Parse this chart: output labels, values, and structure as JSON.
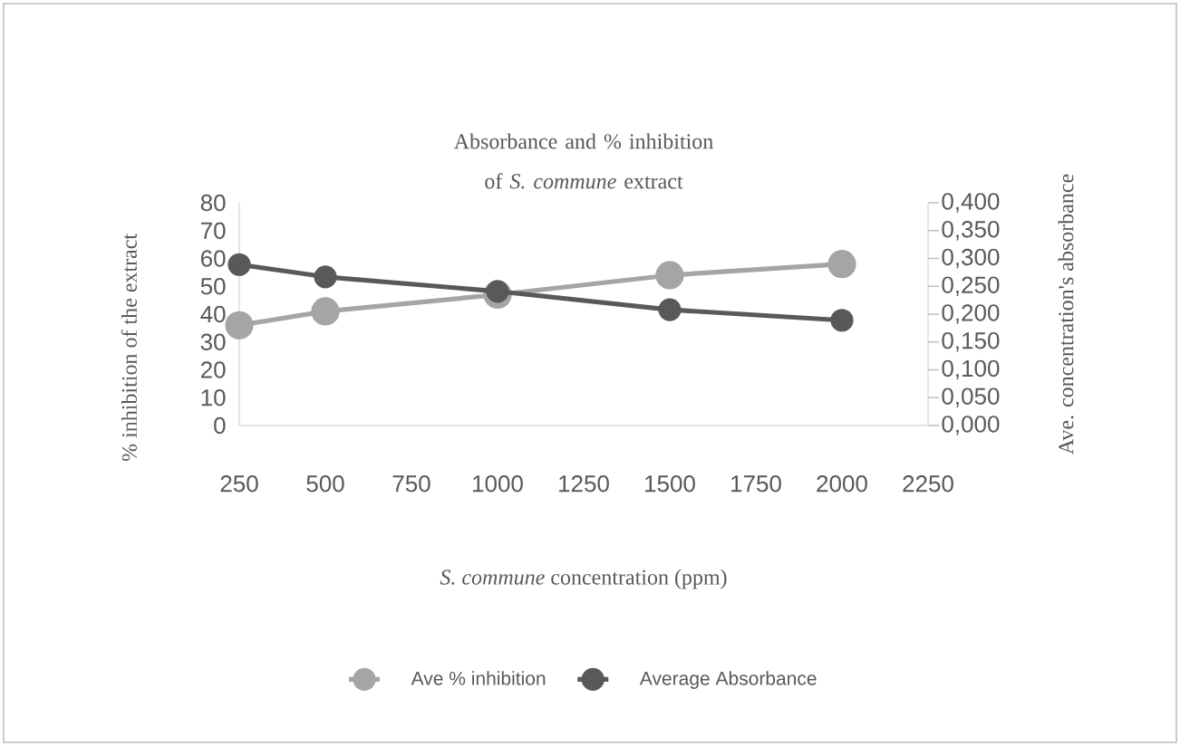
{
  "chart_data": {
    "type": "line",
    "title": "Absorbance and % inhibition of *S. commune* extract",
    "xlabel": "*S. commune* concentration (ppm)",
    "ylabel": "% inhibition of the extract",
    "y2label": "Ave. concentration's absorbance",
    "x": [
      250,
      500,
      1000,
      1500,
      2000
    ],
    "xlim": [
      250,
      2250
    ],
    "xticks": [
      250,
      500,
      750,
      1000,
      1250,
      1500,
      1750,
      2000,
      2250
    ],
    "ylim": [
      0,
      80
    ],
    "yticks": [
      0,
      10,
      20,
      30,
      40,
      50,
      60,
      70,
      80
    ],
    "y2lim": [
      0,
      0.4
    ],
    "y2ticks": [
      {
        "value": 0,
        "label": "0,000"
      },
      {
        "value": 0.05,
        "label": "0,050"
      },
      {
        "value": 0.1,
        "label": "0,100"
      },
      {
        "value": 0.15,
        "label": "0,150"
      },
      {
        "value": 0.2,
        "label": "0,200"
      },
      {
        "value": 0.25,
        "label": "0,250"
      },
      {
        "value": 0.3,
        "label": "0,300"
      },
      {
        "value": 0.35,
        "label": "0,350"
      },
      {
        "value": 0.4,
        "label": "0,400"
      }
    ],
    "series": [
      {
        "name": "Ave % inhibition",
        "color": "#a5a5a5",
        "values": [
          36,
          41,
          47,
          54,
          58
        ]
      },
      {
        "name": "Average Absorbance",
        "color": "#595959",
        "axis": "y2",
        "values": [
          0.289,
          0.267,
          0.241,
          0.208,
          0.189
        ]
      }
    ],
    "marker": "circle",
    "line_style": "solid",
    "grid": false,
    "legend": "bottom"
  }
}
